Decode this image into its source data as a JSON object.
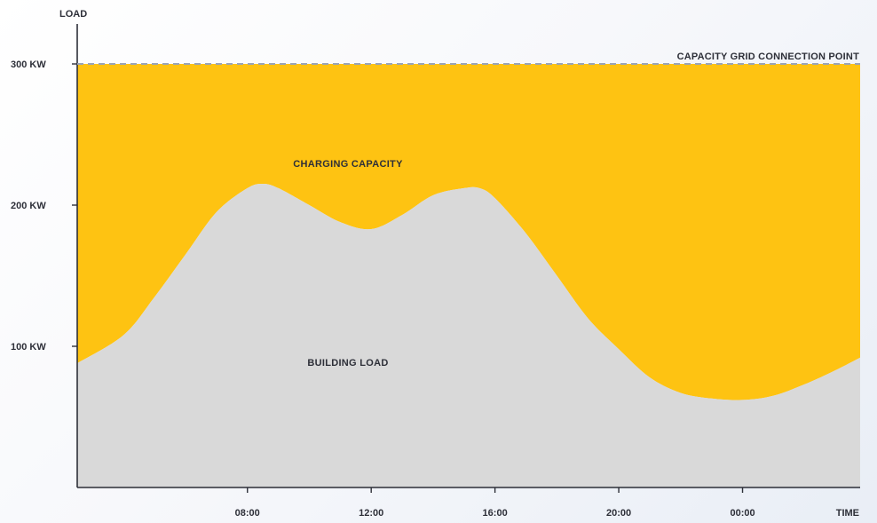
{
  "chart_data": {
    "type": "area",
    "ylabel": "LOAD",
    "xlabel": "TIME",
    "ylim": [
      0,
      330
    ],
    "x_ticks": [
      "08:00",
      "12:00",
      "16:00",
      "20:00",
      "00:00"
    ],
    "y_ticks": [
      {
        "value": 100,
        "label": "100 KW"
      },
      {
        "value": 200,
        "label": "200 KW"
      },
      {
        "value": 300,
        "label": "300 KW"
      }
    ],
    "reference_line": {
      "value": 300,
      "label": "CAPACITY GRID CONNECTION POINT",
      "style": "dashed"
    },
    "x_hours": [
      2.5,
      4,
      5,
      6,
      7,
      8,
      8.5,
      9,
      10,
      11,
      12,
      13,
      14,
      15,
      15.5,
      16,
      17,
      18,
      19,
      20,
      21,
      22,
      23,
      24,
      25,
      26,
      27,
      27.8
    ],
    "series": [
      {
        "name": "BUILDING LOAD",
        "color": "#d9d9d9",
        "values": [
          88,
          108,
          135,
          165,
          195,
          212,
          215,
          212,
          200,
          188,
          183,
          193,
          207,
          212,
          212,
          205,
          180,
          150,
          120,
          98,
          78,
          67,
          63,
          62,
          65,
          73,
          83,
          92
        ]
      },
      {
        "name": "CHARGING CAPACITY",
        "color": "#fec312",
        "top_value": 300
      }
    ],
    "grid": false,
    "legend": "none"
  },
  "colors": {
    "axis": "#2d2f38",
    "dash": "#9aa4b6"
  }
}
